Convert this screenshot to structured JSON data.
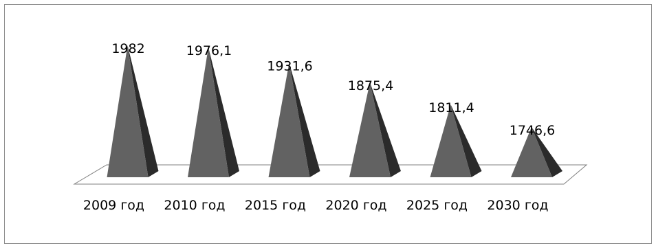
{
  "chart_data": {
    "type": "bar",
    "style": "3d-pyramid",
    "categories": [
      "2009 год",
      "2010 год",
      "2015 год",
      "2020 год",
      "2025 год",
      "2030 год"
    ],
    "values": [
      1982,
      1976.1,
      1931.6,
      1875.4,
      1811.4,
      1746.6
    ],
    "value_labels": [
      "1982",
      "1976,1",
      "1931,6",
      "1875,4",
      "1811,4",
      "1746,6"
    ],
    "title": "",
    "xlabel": "",
    "ylabel": "",
    "legend": "none",
    "grid": false,
    "colors": {
      "front_face": "#626262",
      "side_face": "#2b2b2b",
      "floor_stroke": "#7f7f7f",
      "frame": "#8c8c8c"
    }
  }
}
